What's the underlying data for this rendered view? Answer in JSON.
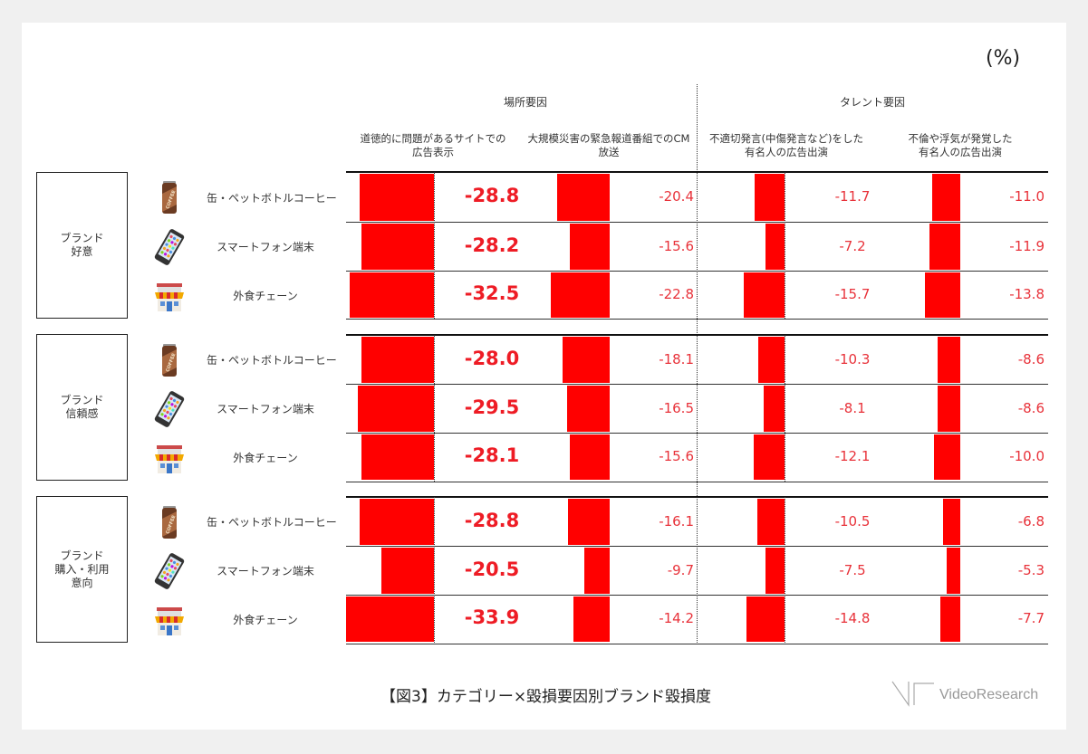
{
  "unit_label": "(%)",
  "group_headers": {
    "place": "場所要因",
    "talent": "タレント要因"
  },
  "column_headers": [
    "道徳的に問題があるサイトでの\n広告表示",
    "大規模災害の緊急報道番組でのCM\n放送",
    "不適切発言(中傷発言など)をした\n有名人の広告出演",
    "不倫や浮気が発覚した\n有名人の広告出演"
  ],
  "categories": [
    {
      "label": "ブランド\n好意"
    },
    {
      "label": "ブランド\n信頼感"
    },
    {
      "label": "ブランド\n購入・利用\n意向"
    }
  ],
  "products": [
    {
      "label": "缶・ペットボトルコーヒー",
      "icon": "coffee-can-icon"
    },
    {
      "label": "スマートフォン端末",
      "icon": "smartphone-icon"
    },
    {
      "label": "外食チェーン",
      "icon": "restaurant-store-icon"
    }
  ],
  "caption": "【図3】カテゴリー×毀損要因別ブランド毀損度",
  "logo": {
    "text": "VideoResearch"
  },
  "colors": {
    "bar": "#ff0000",
    "value_text": "#e8323a"
  },
  "chart_data": {
    "type": "table",
    "title": "【図3】カテゴリー×毀損要因別ブランド毀損度",
    "unit": "%",
    "column_groups": [
      {
        "name": "場所要因",
        "columns": [
          "道徳的に問題があるサイトでの広告表示",
          "大規模災害の緊急報道番組でのCM放送"
        ]
      },
      {
        "name": "タレント要因",
        "columns": [
          "不適切発言(中傷発言など)をした有名人の広告出演",
          "不倫や浮気が発覚した有名人の広告出演"
        ]
      }
    ],
    "columns": [
      "道徳的に問題があるサイトでの広告表示",
      "大規模災害の緊急報道番組でのCM放送",
      "不適切発言(中傷発言など)をした有名人の広告出演",
      "不倫や浮気が発覚した有名人の広告出演"
    ],
    "rows": [
      {
        "metric": "ブランド好意",
        "product": "缶・ペットボトルコーヒー",
        "values": [
          "-28.8",
          "-20.4",
          "-11.7",
          "-11.0"
        ]
      },
      {
        "metric": "ブランド好意",
        "product": "スマートフォン端末",
        "values": [
          "-28.2",
          "-15.6",
          "-7.2",
          "-11.9"
        ]
      },
      {
        "metric": "ブランド好意",
        "product": "外食チェーン",
        "values": [
          "-32.5",
          "-22.8",
          "-15.7",
          "-13.8"
        ]
      },
      {
        "metric": "ブランド信頼感",
        "product": "缶・ペットボトルコーヒー",
        "values": [
          "-28.0",
          "-18.1",
          "-10.3",
          "-8.6"
        ]
      },
      {
        "metric": "ブランド信頼感",
        "product": "スマートフォン端末",
        "values": [
          "-29.5",
          "-16.5",
          "-8.1",
          "-8.6"
        ]
      },
      {
        "metric": "ブランド信頼感",
        "product": "外食チェーン",
        "values": [
          "-28.1",
          "-15.6",
          "-12.1",
          "-10.0"
        ]
      },
      {
        "metric": "ブランド購入・利用意向",
        "product": "缶・ペットボトルコーヒー",
        "values": [
          "-28.8",
          "-16.1",
          "-10.5",
          "-6.8"
        ]
      },
      {
        "metric": "ブランド購入・利用意向",
        "product": "スマートフォン端末",
        "values": [
          "-20.5",
          "-9.7",
          "-7.5",
          "-5.3"
        ]
      },
      {
        "metric": "ブランド購入・利用意向",
        "product": "外食チェーン",
        "values": [
          "-33.9",
          "-14.2",
          "-14.8",
          "-7.7"
        ]
      }
    ]
  }
}
